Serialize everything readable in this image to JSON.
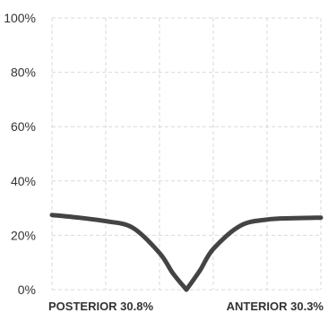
{
  "chart_data": {
    "type": "line",
    "x": [
      0,
      0.1,
      0.2,
      0.3,
      0.4,
      0.45,
      0.5,
      0.55,
      0.6,
      0.7,
      0.8,
      0.9,
      1.0
    ],
    "series": [
      {
        "values": [
          27.5,
          26.5,
          25.2,
          22.8,
          13.5,
          6.0,
          0.0,
          7.0,
          15.0,
          23.5,
          25.8,
          26.3,
          26.5
        ]
      }
    ],
    "ylim": [
      0,
      100
    ],
    "y_ticks": [
      "0%",
      "20%",
      "40%",
      "60%",
      "80%",
      "100%"
    ],
    "x_labels": [
      {
        "text": "POSTERIOR 30.8%"
      },
      {
        "text": "ANTERIOR 30.3%"
      }
    ],
    "grid": true,
    "colors": {
      "line": "#444444",
      "grid": "#d9d9d9",
      "text": "#333333"
    }
  }
}
